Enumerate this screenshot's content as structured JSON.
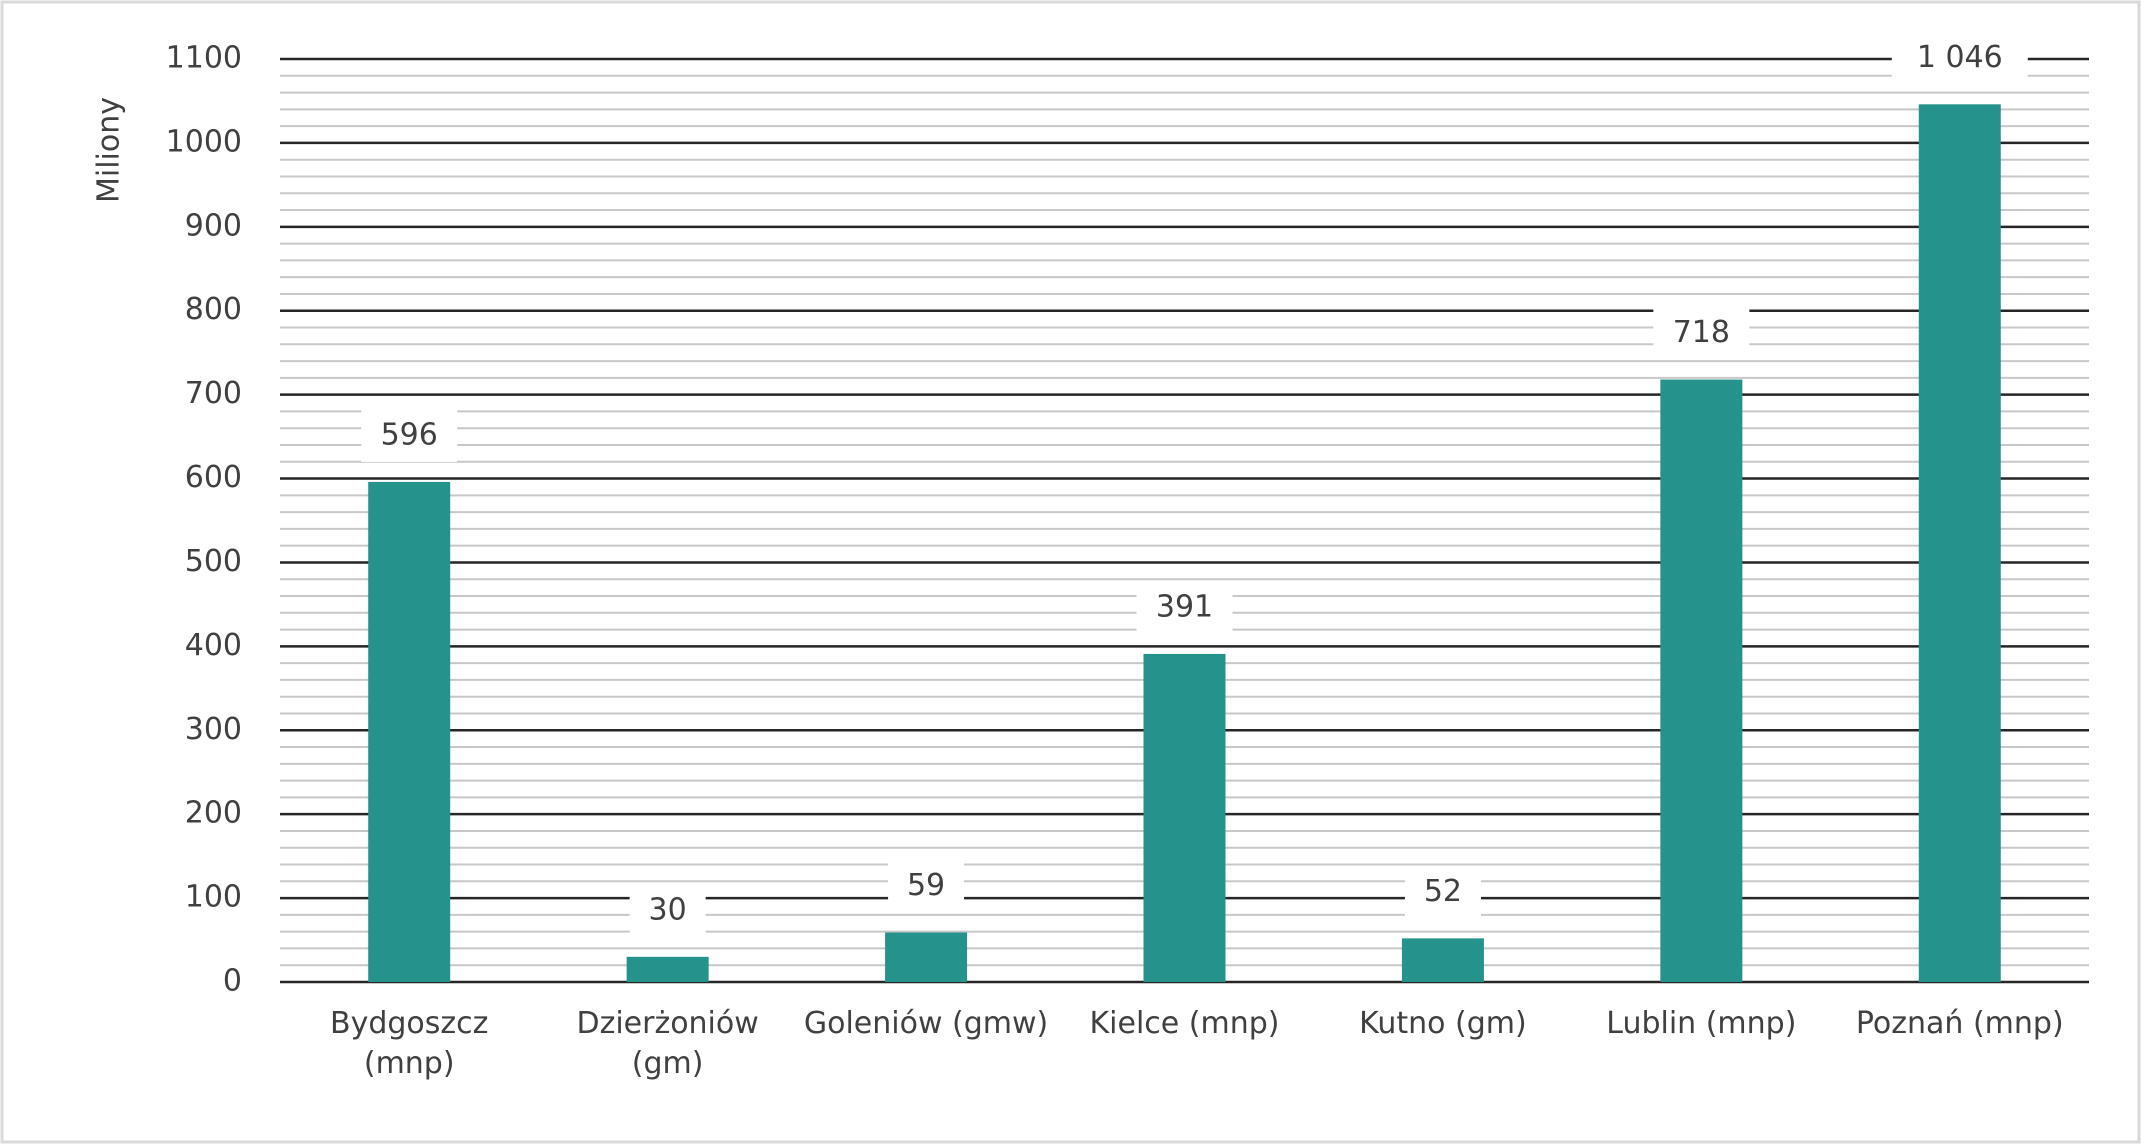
{
  "chart_data": {
    "type": "bar",
    "y_axis_label": "Miliony",
    "categories": [
      "Bydgoszcz (mnp)",
      "Dzierżoniów (gm)",
      "Goleniów (gmw)",
      "Kielce (mnp)",
      "Kutno (gm)",
      "Lublin (mnp)",
      "Poznań (mnp)"
    ],
    "values": [
      596,
      30,
      59,
      391,
      52,
      718,
      1046
    ],
    "value_labels": [
      "596",
      "30",
      "59",
      "391",
      "52",
      "718",
      "1 046"
    ],
    "color": "#25938b",
    "ylim": [
      0,
      1100
    ],
    "yticks": [
      0,
      100,
      200,
      300,
      400,
      500,
      600,
      700,
      800,
      900,
      1000,
      1100
    ],
    "grid": true,
    "minor_grid": true
  }
}
